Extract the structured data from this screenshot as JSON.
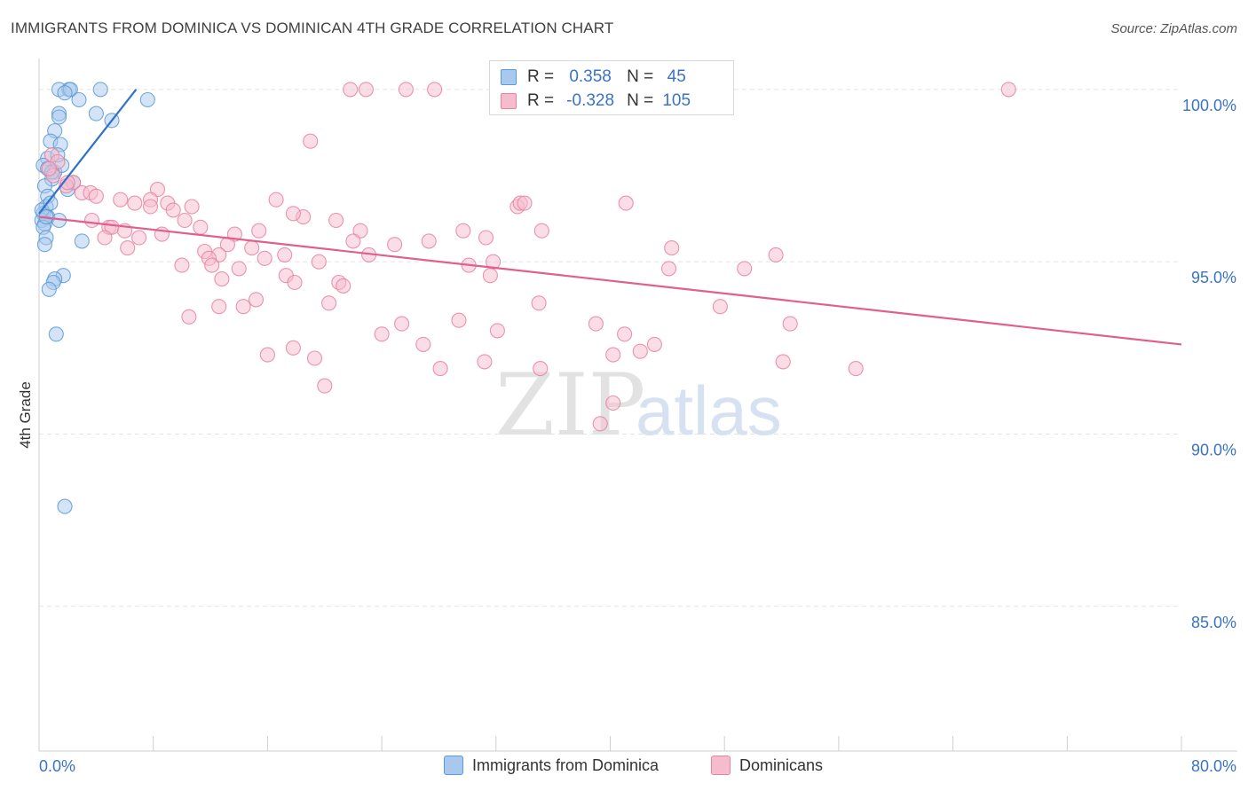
{
  "chart_data": {
    "type": "scatter",
    "title": "IMMIGRANTS FROM DOMINICA VS DOMINICAN 4TH GRADE CORRELATION CHART",
    "source": "Source: ZipAtlas.com",
    "watermark": {
      "zip": "ZIP",
      "atlas": "atlas"
    },
    "xlabel": "",
    "ylabel": "4th Grade",
    "xlim": [
      0,
      80
    ],
    "ylim": [
      80.8,
      101.0
    ],
    "x_tick_labels": {
      "min": "0.0%",
      "max": "80.0%"
    },
    "x_ticks": [
      0,
      8,
      16,
      24,
      32,
      40,
      48,
      56,
      64,
      72,
      80
    ],
    "y_ticks": [
      {
        "value": 100,
        "label": "100.0%"
      },
      {
        "value": 95,
        "label": "95.0%"
      },
      {
        "value": 90,
        "label": "90.0%"
      },
      {
        "value": 85,
        "label": "85.0%"
      }
    ],
    "grid": true,
    "legend": {
      "position": "top-center",
      "rows": [
        {
          "r_label": "R =",
          "r_value": "0.358",
          "n_label": "N =",
          "n_value": "45"
        },
        {
          "r_label": "R =",
          "r_value": "-0.328",
          "n_label": "N =",
          "n_value": "105"
        }
      ]
    },
    "series": [
      {
        "name": "Immigrants from Dominica",
        "color": "#5b9bd5",
        "fill": "#a9c8ee",
        "trend_color": "#2f72c9",
        "trend": {
          "x": [
            0.0,
            6.8
          ],
          "y": [
            96.4,
            100.0
          ]
        },
        "points": [
          [
            1.4,
            100.0
          ],
          [
            2.1,
            100.0
          ],
          [
            2.2,
            100.0
          ],
          [
            4.3,
            100.0
          ],
          [
            1.8,
            99.9
          ],
          [
            2.8,
            99.7
          ],
          [
            7.6,
            99.7
          ],
          [
            1.4,
            99.3
          ],
          [
            4.0,
            99.3
          ],
          [
            5.1,
            99.1
          ],
          [
            1.4,
            99.2
          ],
          [
            1.1,
            98.8
          ],
          [
            0.8,
            98.5
          ],
          [
            1.5,
            98.4
          ],
          [
            0.6,
            98.0
          ],
          [
            0.3,
            97.8
          ],
          [
            0.6,
            97.7
          ],
          [
            1.1,
            97.6
          ],
          [
            0.9,
            97.4
          ],
          [
            0.4,
            97.2
          ],
          [
            2.0,
            97.1
          ],
          [
            0.6,
            96.9
          ],
          [
            0.5,
            96.6
          ],
          [
            0.3,
            96.4
          ],
          [
            0.6,
            96.3
          ],
          [
            0.2,
            96.2
          ],
          [
            0.4,
            96.1
          ],
          [
            1.4,
            96.2
          ],
          [
            0.3,
            96.0
          ],
          [
            0.5,
            95.7
          ],
          [
            3.0,
            95.6
          ],
          [
            0.4,
            95.5
          ],
          [
            1.7,
            94.6
          ],
          [
            1.1,
            94.5
          ],
          [
            1.0,
            94.4
          ],
          [
            0.7,
            94.2
          ],
          [
            1.2,
            92.9
          ],
          [
            1.8,
            87.9
          ],
          [
            1.6,
            97.8
          ],
          [
            0.9,
            97.6
          ],
          [
            2.4,
            97.3
          ],
          [
            0.2,
            96.5
          ],
          [
            0.8,
            96.7
          ],
          [
            0.5,
            96.3
          ],
          [
            1.3,
            98.1
          ]
        ]
      },
      {
        "name": "Dominicans",
        "color": "#e8829f",
        "fill": "#f5bccd",
        "trend_color": "#e0608d",
        "trend": {
          "x": [
            0.0,
            80.0
          ],
          "y": [
            96.3,
            92.6
          ]
        },
        "points": [
          [
            21.8,
            100.0
          ],
          [
            22.9,
            100.0
          ],
          [
            25.7,
            100.0
          ],
          [
            27.7,
            100.0
          ],
          [
            32.4,
            100.0
          ],
          [
            67.9,
            100.0
          ],
          [
            19.0,
            98.5
          ],
          [
            0.9,
            98.1
          ],
          [
            1.3,
            97.9
          ],
          [
            1.0,
            97.5
          ],
          [
            2.4,
            97.3
          ],
          [
            1.9,
            97.2
          ],
          [
            3.0,
            97.0
          ],
          [
            3.6,
            97.0
          ],
          [
            8.3,
            97.1
          ],
          [
            4.0,
            96.9
          ],
          [
            5.7,
            96.8
          ],
          [
            9.0,
            96.7
          ],
          [
            7.8,
            96.8
          ],
          [
            6.7,
            96.7
          ],
          [
            16.6,
            96.8
          ],
          [
            33.5,
            96.6
          ],
          [
            33.7,
            96.7
          ],
          [
            41.1,
            96.7
          ],
          [
            7.8,
            96.6
          ],
          [
            10.7,
            96.6
          ],
          [
            9.4,
            96.5
          ],
          [
            18.5,
            96.3
          ],
          [
            20.8,
            96.2
          ],
          [
            10.2,
            96.2
          ],
          [
            3.7,
            96.2
          ],
          [
            4.9,
            96.0
          ],
          [
            5.1,
            96.0
          ],
          [
            6.0,
            95.9
          ],
          [
            11.3,
            96.0
          ],
          [
            15.4,
            95.9
          ],
          [
            22.5,
            95.9
          ],
          [
            35.2,
            95.9
          ],
          [
            29.7,
            95.9
          ],
          [
            13.7,
            95.8
          ],
          [
            8.6,
            95.8
          ],
          [
            7.0,
            95.7
          ],
          [
            4.6,
            95.7
          ],
          [
            31.3,
            95.7
          ],
          [
            22.0,
            95.6
          ],
          [
            13.2,
            95.5
          ],
          [
            14.9,
            95.4
          ],
          [
            6.2,
            95.4
          ],
          [
            24.9,
            95.5
          ],
          [
            44.3,
            95.4
          ],
          [
            11.6,
            95.3
          ],
          [
            12.6,
            95.2
          ],
          [
            17.2,
            95.2
          ],
          [
            23.1,
            95.2
          ],
          [
            51.6,
            95.2
          ],
          [
            11.9,
            95.1
          ],
          [
            15.8,
            95.1
          ],
          [
            19.6,
            95.0
          ],
          [
            31.8,
            95.0
          ],
          [
            10.0,
            94.9
          ],
          [
            12.1,
            94.9
          ],
          [
            14.0,
            94.8
          ],
          [
            44.1,
            94.8
          ],
          [
            49.4,
            94.8
          ],
          [
            17.3,
            94.6
          ],
          [
            31.6,
            94.6
          ],
          [
            12.8,
            94.5
          ],
          [
            17.9,
            94.4
          ],
          [
            21.0,
            94.4
          ],
          [
            21.3,
            94.3
          ],
          [
            15.2,
            93.9
          ],
          [
            20.3,
            93.8
          ],
          [
            35.0,
            93.8
          ],
          [
            12.6,
            93.7
          ],
          [
            14.3,
            93.7
          ],
          [
            47.7,
            93.7
          ],
          [
            10.5,
            93.4
          ],
          [
            29.4,
            93.3
          ],
          [
            25.4,
            93.2
          ],
          [
            39.0,
            93.2
          ],
          [
            52.6,
            93.2
          ],
          [
            32.1,
            93.0
          ],
          [
            24.0,
            92.9
          ],
          [
            41.0,
            92.9
          ],
          [
            26.9,
            92.6
          ],
          [
            17.8,
            92.5
          ],
          [
            43.1,
            92.6
          ],
          [
            42.1,
            92.4
          ],
          [
            16.0,
            92.3
          ],
          [
            40.2,
            92.3
          ],
          [
            19.3,
            92.2
          ],
          [
            31.2,
            92.1
          ],
          [
            52.1,
            92.1
          ],
          [
            28.1,
            91.9
          ],
          [
            35.1,
            91.9
          ],
          [
            57.2,
            91.9
          ],
          [
            20.0,
            91.4
          ],
          [
            40.2,
            90.9
          ],
          [
            39.3,
            90.3
          ],
          [
            2.0,
            97.3
          ],
          [
            34.0,
            96.7
          ],
          [
            0.7,
            97.7
          ],
          [
            17.8,
            96.4
          ],
          [
            27.3,
            95.6
          ],
          [
            30.1,
            94.9
          ]
        ]
      }
    ]
  }
}
